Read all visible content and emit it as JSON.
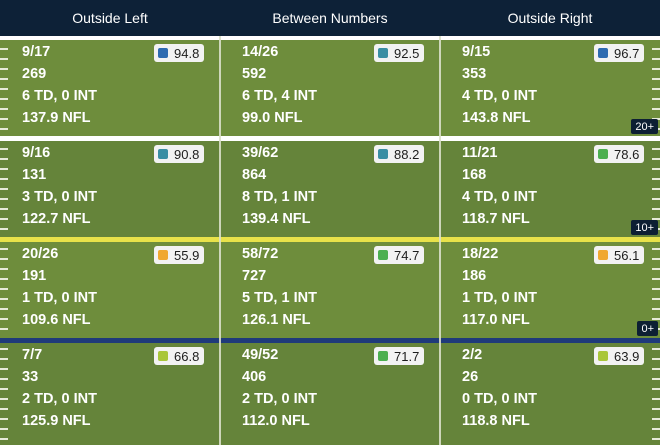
{
  "header": {
    "columns": [
      "Outside Left",
      "Between Numbers",
      "Outside Right"
    ]
  },
  "colors": {
    "field": "#6b8a3a",
    "deep": "#ffffff",
    "ten": "#ffffff",
    "los": "#e8e24a",
    "behind": "#1f3a7a",
    "grade_blue": "#2e6bb0",
    "grade_teal": "#3a8ea3",
    "grade_green": "#4caf50",
    "grade_lime": "#a9c63a",
    "grade_orange": "#f0a830"
  },
  "zones": [
    {
      "label": "20+",
      "cells": [
        {
          "comp": "9/17",
          "yds": "269",
          "tdint": "6 TD, 0 INT",
          "rating": "137.9 NFL",
          "grade": "94.8",
          "grade_color": "#2e6bb0"
        },
        {
          "comp": "14/26",
          "yds": "592",
          "tdint": "6 TD, 4 INT",
          "rating": "99.0 NFL",
          "grade": "92.5",
          "grade_color": "#3a8ea3"
        },
        {
          "comp": "9/15",
          "yds": "353",
          "tdint": "4 TD, 0 INT",
          "rating": "143.8 NFL",
          "grade": "96.7",
          "grade_color": "#2e6bb0"
        }
      ]
    },
    {
      "label": "10+",
      "cells": [
        {
          "comp": "9/16",
          "yds": "131",
          "tdint": "3 TD, 0 INT",
          "rating": "122.7 NFL",
          "grade": "90.8",
          "grade_color": "#3a8ea3"
        },
        {
          "comp": "39/62",
          "yds": "864",
          "tdint": "8 TD, 1 INT",
          "rating": "139.4 NFL",
          "grade": "88.2",
          "grade_color": "#3a8ea3"
        },
        {
          "comp": "11/21",
          "yds": "168",
          "tdint": "4 TD, 0 INT",
          "rating": "118.7 NFL",
          "grade": "78.6",
          "grade_color": "#4caf50"
        }
      ]
    },
    {
      "label": "0+",
      "cells": [
        {
          "comp": "20/26",
          "yds": "191",
          "tdint": "1 TD, 0 INT",
          "rating": "109.6 NFL",
          "grade": "55.9",
          "grade_color": "#f0a830"
        },
        {
          "comp": "58/72",
          "yds": "727",
          "tdint": "5 TD, 1 INT",
          "rating": "126.1 NFL",
          "grade": "74.7",
          "grade_color": "#4caf50"
        },
        {
          "comp": "18/22",
          "yds": "186",
          "tdint": "1 TD, 0 INT",
          "rating": "117.0 NFL",
          "grade": "56.1",
          "grade_color": "#f0a830"
        }
      ]
    },
    {
      "label": "",
      "cells": [
        {
          "comp": "7/7",
          "yds": "33",
          "tdint": "2 TD, 0 INT",
          "rating": "125.9 NFL",
          "grade": "66.8",
          "grade_color": "#a9c63a"
        },
        {
          "comp": "49/52",
          "yds": "406",
          "tdint": "2 TD, 0 INT",
          "rating": "112.0 NFL",
          "grade": "71.7",
          "grade_color": "#4caf50"
        },
        {
          "comp": "2/2",
          "yds": "26",
          "tdint": "0 TD, 0 INT",
          "rating": "118.8 NFL",
          "grade": "63.9",
          "grade_color": "#a9c63a"
        }
      ]
    }
  ]
}
